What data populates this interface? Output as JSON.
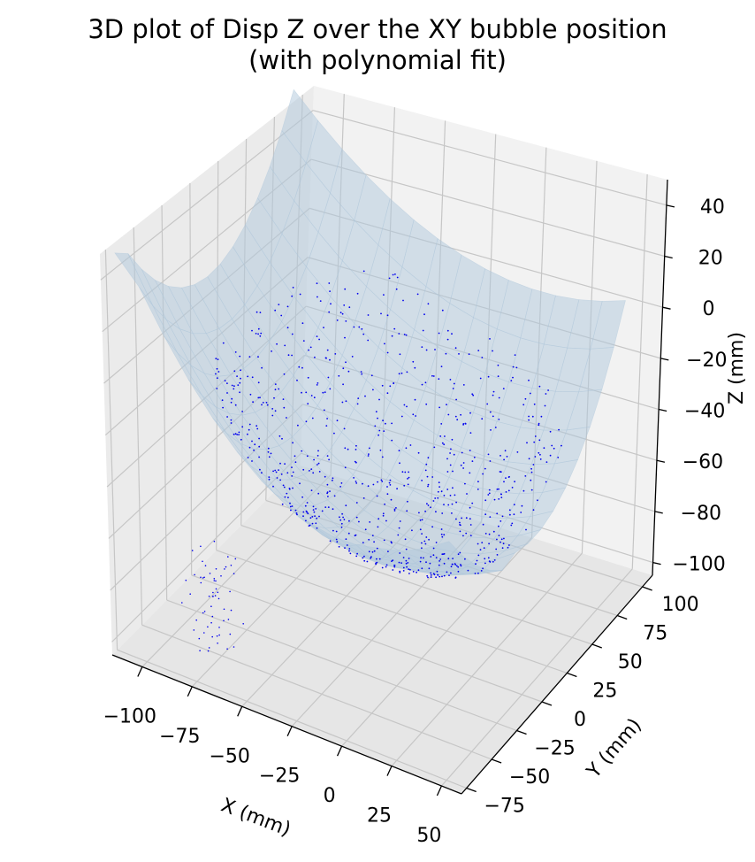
{
  "chart_data": {
    "type": "surface3d",
    "title_line1": "3D plot of Disp Z over the XY bubble position",
    "title_line2": "(with polynomial fit)",
    "xlabel": "X (mm)",
    "ylabel": "Y (mm)",
    "zlabel": "Z (mm)",
    "x_ticks": [
      -100,
      -75,
      -50,
      -25,
      0,
      25,
      50
    ],
    "y_ticks": [
      -75,
      -50,
      -25,
      0,
      25,
      50,
      75,
      100
    ],
    "z_ticks": [
      40,
      20,
      0,
      -20,
      -40,
      -60,
      -80,
      -100
    ],
    "xlim": [
      -115,
      60
    ],
    "ylim": [
      -80,
      110
    ],
    "zlim": [
      -105,
      50
    ],
    "grid": true,
    "series": [
      {
        "kind": "polynomial-fit-surface",
        "color": "#b0c8dc"
      },
      {
        "kind": "scatter-points",
        "color": "#0000ee"
      }
    ]
  }
}
